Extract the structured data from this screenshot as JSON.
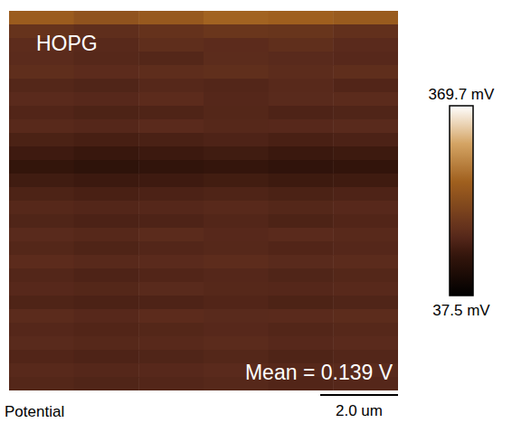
{
  "chart_data": {
    "type": "heatmap",
    "title": "HOPG",
    "annotation": "Mean = 0.139 V",
    "caption": "Potential",
    "scan_size": 10,
    "scale_bar": {
      "value": 2,
      "label": "2.0 um"
    },
    "colorbar": {
      "range": [
        37.5,
        369.7
      ],
      "ticks": [
        {
          "value": 369.7,
          "label": "369.7 mV"
        },
        {
          "value": 37.5,
          "label": "37.5 mV"
        }
      ]
    },
    "cells": [
      [
        230,
        215,
        225,
        240,
        235,
        228
      ],
      [
        160,
        150,
        158,
        165,
        162,
        155
      ],
      [
        148,
        142,
        150,
        146,
        152,
        144
      ],
      [
        145,
        140,
        138,
        147,
        143,
        141
      ],
      [
        150,
        146,
        149,
        152,
        147,
        151
      ],
      [
        138,
        135,
        140,
        137,
        142,
        136
      ],
      [
        144,
        141,
        146,
        139,
        143,
        145
      ],
      [
        136,
        132,
        134,
        138,
        133,
        135
      ],
      [
        142,
        139,
        144,
        140,
        141,
        143
      ],
      [
        130,
        126,
        129,
        133,
        128,
        131
      ],
      [
        118,
        112,
        116,
        120,
        114,
        117
      ],
      [
        106,
        100,
        104,
        108,
        102,
        105
      ],
      [
        120,
        116,
        118,
        122,
        117,
        119
      ],
      [
        132,
        128,
        131,
        134,
        130,
        133
      ],
      [
        140,
        137,
        139,
        142,
        138,
        141
      ],
      [
        135,
        131,
        133,
        137,
        132,
        136
      ],
      [
        143,
        140,
        145,
        141,
        144,
        142
      ],
      [
        138,
        134,
        137,
        140,
        136,
        139
      ],
      [
        146,
        142,
        144,
        148,
        143,
        145
      ],
      [
        137,
        133,
        136,
        139,
        135,
        138
      ],
      [
        141,
        138,
        143,
        140,
        139,
        142
      ],
      [
        134,
        131,
        133,
        136,
        132,
        135
      ],
      [
        145,
        141,
        146,
        143,
        144,
        147
      ],
      [
        139,
        136,
        138,
        141,
        137,
        140
      ],
      [
        143,
        140,
        142,
        145,
        141,
        144
      ],
      [
        136,
        133,
        135,
        138,
        134,
        137
      ],
      [
        142,
        139,
        141,
        144,
        140,
        143
      ],
      [
        138,
        135,
        137,
        140,
        136,
        139
      ]
    ]
  }
}
